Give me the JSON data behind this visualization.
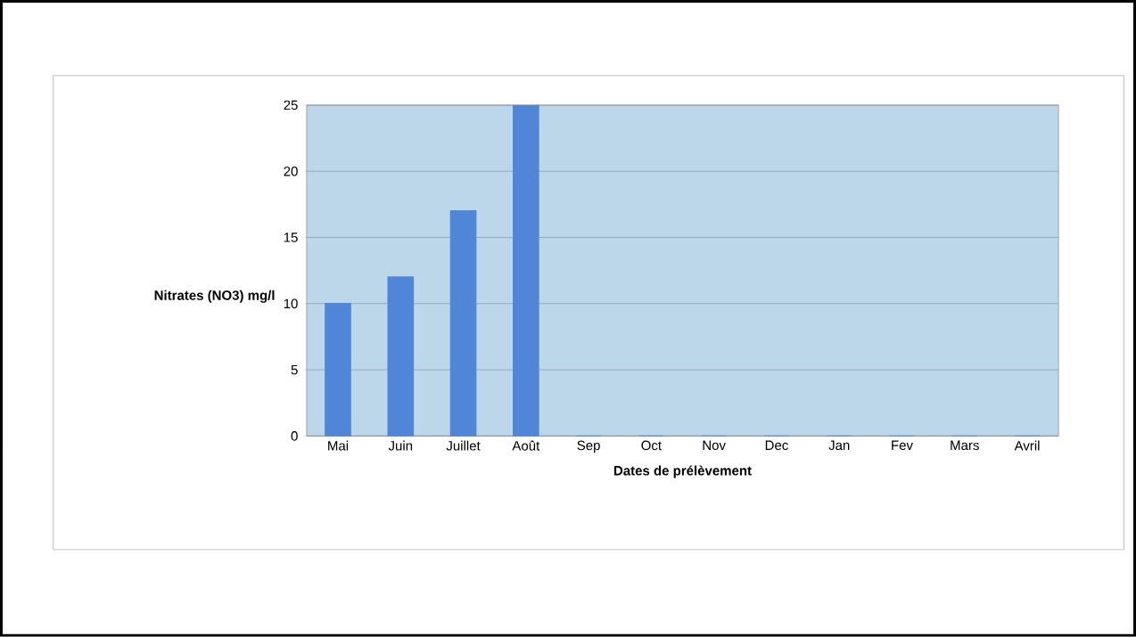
{
  "chart_data": {
    "type": "bar",
    "xlabel": "Dates de prélèvement",
    "ylabel": "Nitrates (NO3) mg/l",
    "categories": [
      "Mai",
      "Juin",
      "Juillet",
      "Août",
      "Sep",
      "Oct",
      "Nov",
      "Dec",
      "Jan",
      "Fev",
      "Mars",
      "Avril"
    ],
    "values": [
      10,
      12,
      17,
      25,
      0,
      0,
      0,
      0,
      0,
      0,
      0,
      0
    ],
    "color": "#4f86d8",
    "ylim": [
      0,
      25
    ],
    "yticks": [
      0,
      5,
      10,
      15,
      20,
      25
    ],
    "grid": "y"
  }
}
